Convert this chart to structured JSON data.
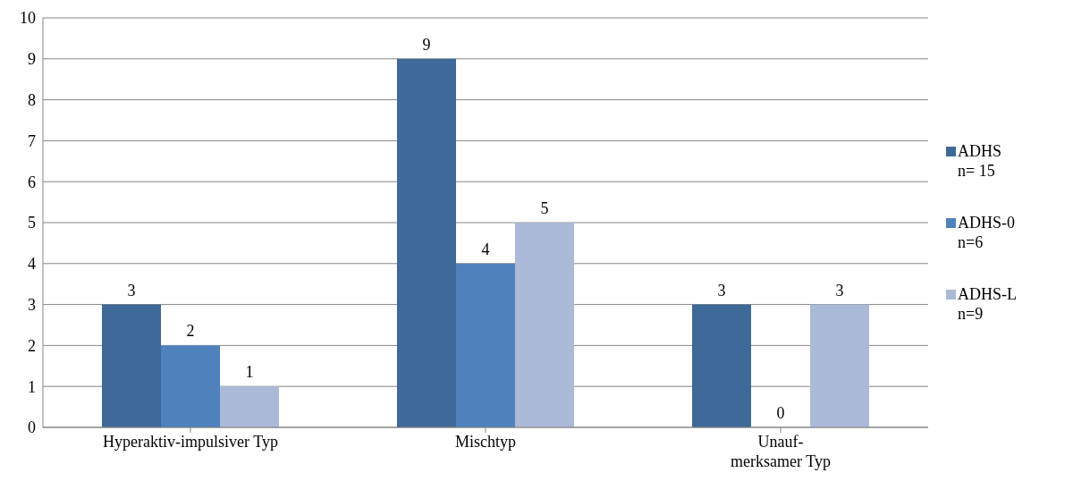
{
  "chart_data": {
    "type": "bar",
    "categories": [
      "Hyperaktiv-impulsiver Typ",
      "Mischtyp",
      "Unauf-\nmerksamer Typ"
    ],
    "series": [
      {
        "name": "ADHS\nn= 15",
        "color": "#3e6998",
        "values": [
          3,
          9,
          3
        ]
      },
      {
        "name": "ADHS-0\nn=6",
        "color": "#4f81bd",
        "values": [
          2,
          4,
          0
        ]
      },
      {
        "name": "ADHS-L\nn=9",
        "color": "#aabad7",
        "values": [
          1,
          5,
          3
        ]
      }
    ],
    "ylim": [
      0,
      10
    ],
    "yticks": [
      0,
      1,
      2,
      3,
      4,
      5,
      6,
      7,
      8,
      9,
      10
    ],
    "grid": "y",
    "legend": "right",
    "data_labels": true
  }
}
